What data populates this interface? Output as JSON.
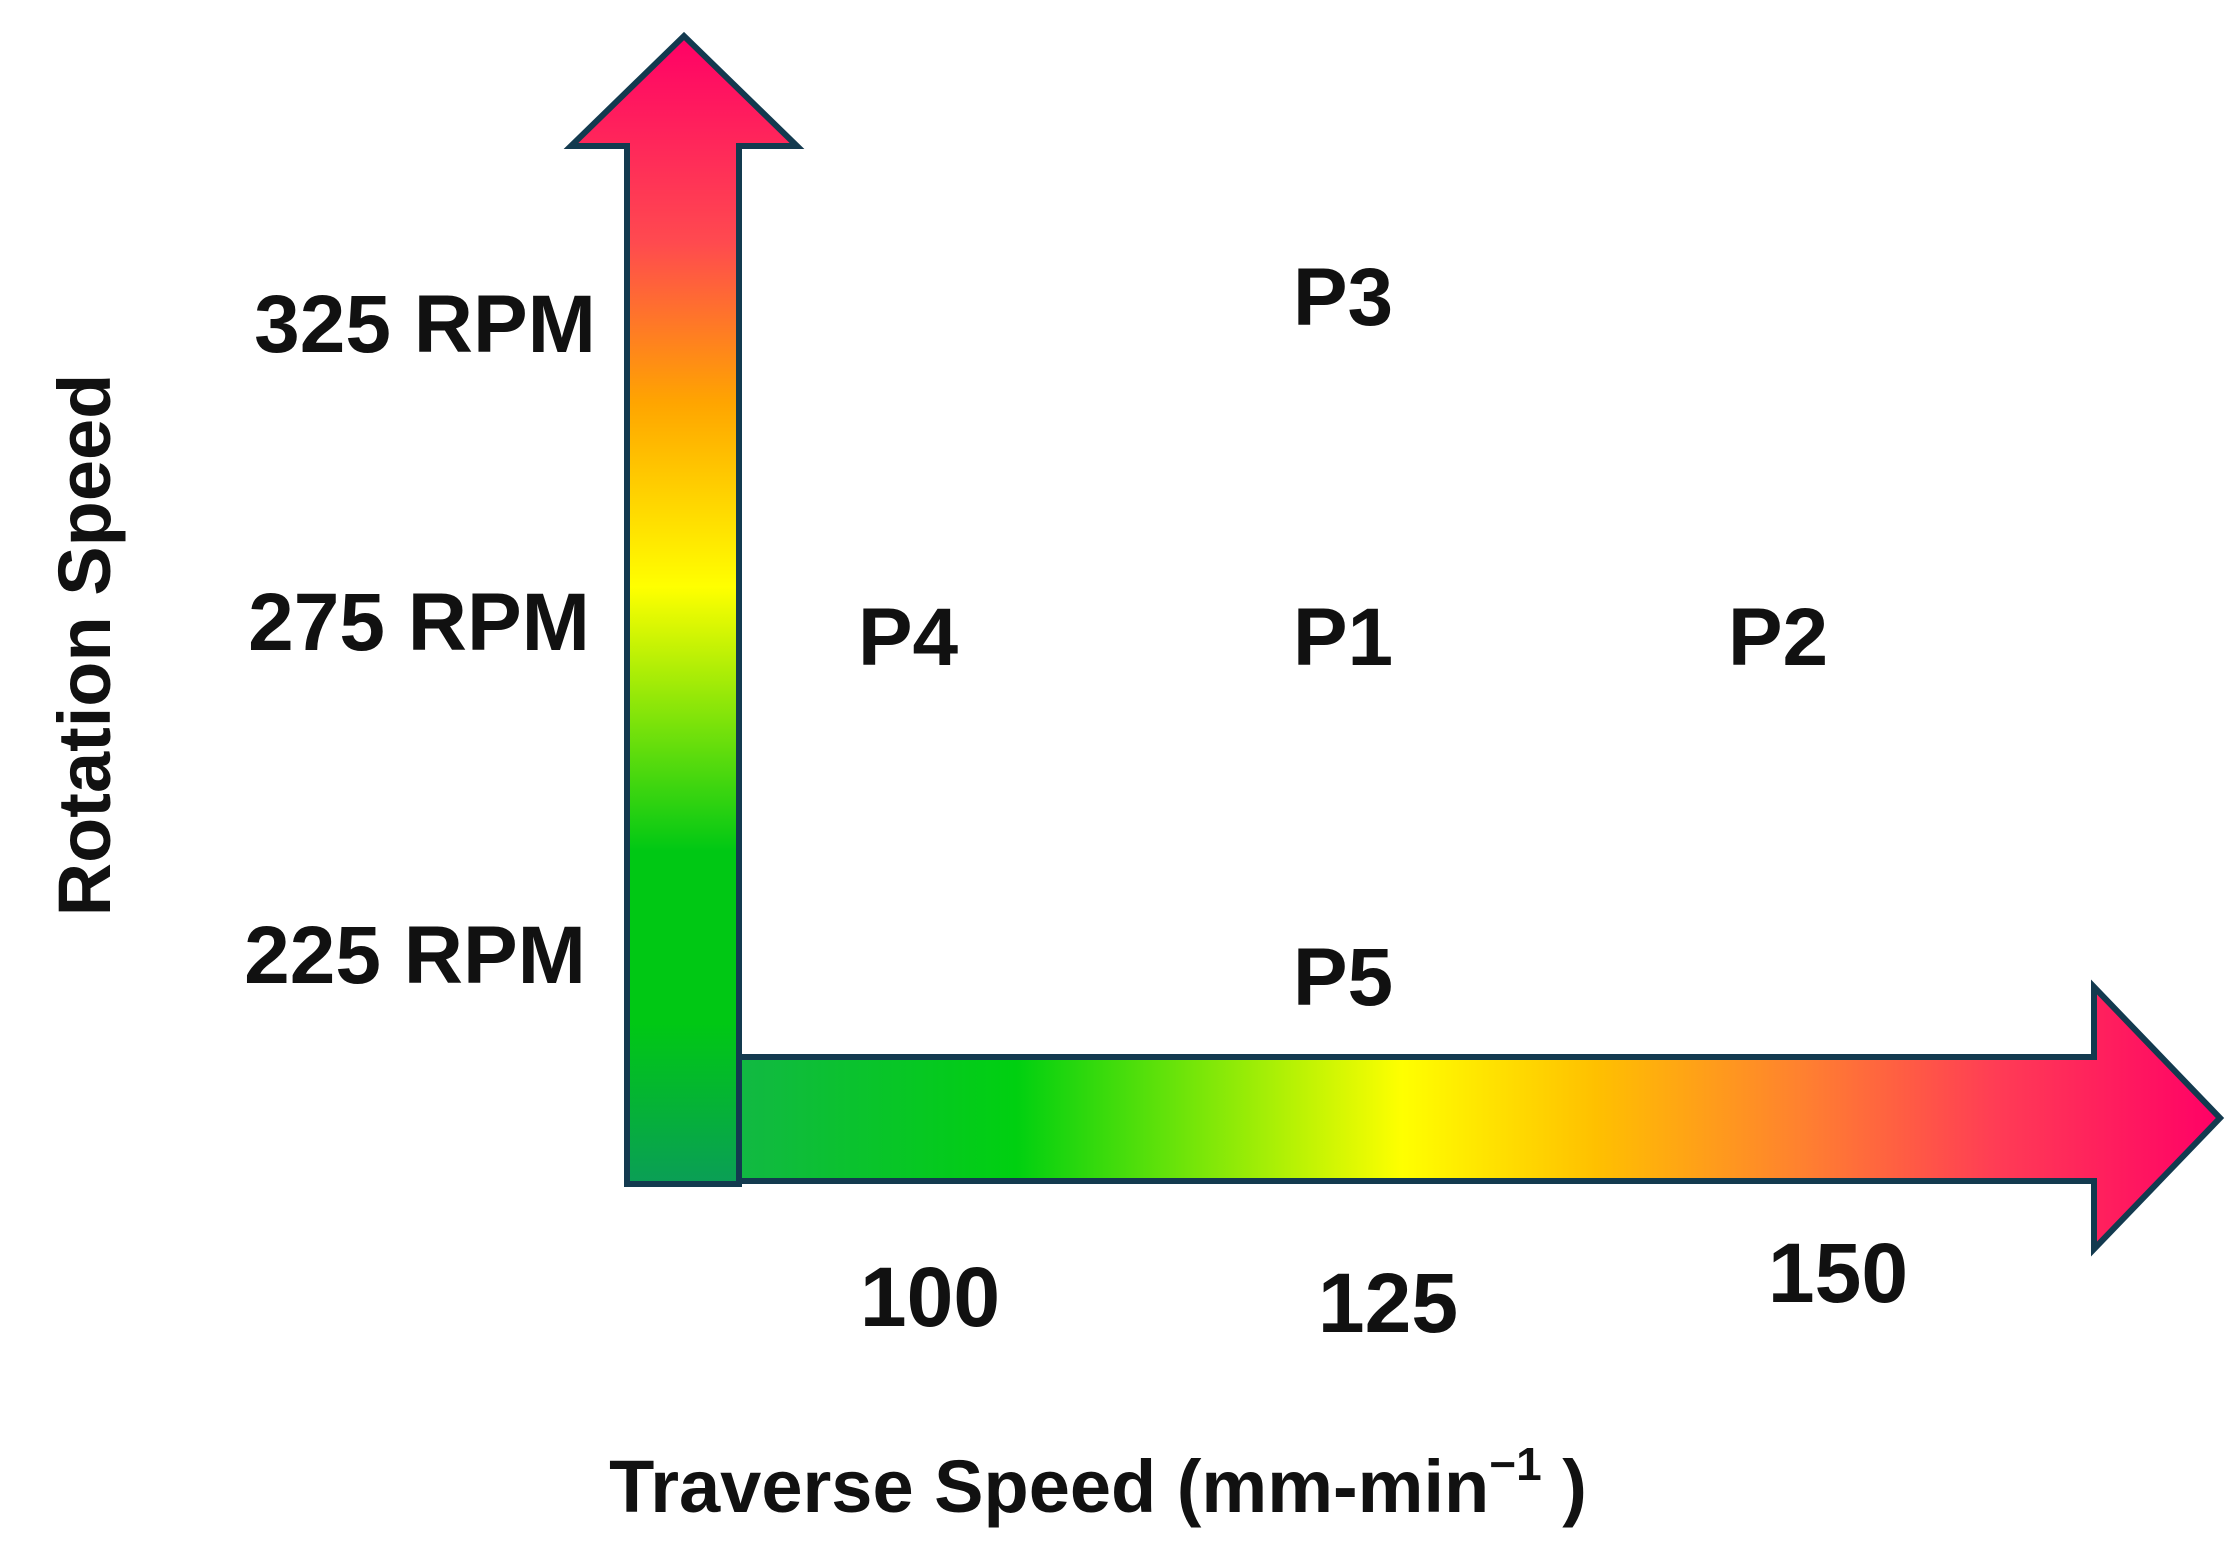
{
  "chart_data": {
    "type": "scatter",
    "title": "",
    "xlabel": "Traverse Speed (mm-min",
    "xlabel_superscript": "−1",
    "xlabel_suffix": " )",
    "ylabel": "Rotation Speed",
    "x_ticks": [
      "100",
      "125",
      "150"
    ],
    "y_ticks": [
      "225 RPM",
      "275 RPM",
      "325 RPM"
    ],
    "points": [
      {
        "label": "P1",
        "x": 125,
        "y": 275
      },
      {
        "label": "P2",
        "x": 150,
        "y": 275
      },
      {
        "label": "P3",
        "x": 125,
        "y": 325
      },
      {
        "label": "P4",
        "x": 100,
        "y": 275
      },
      {
        "label": "P5",
        "x": 125,
        "y": 225
      }
    ],
    "xlim": [
      100,
      150
    ],
    "ylim": [
      225,
      325
    ],
    "colors": {
      "low": "#00c814",
      "mid": "#ffff00",
      "orange": "#ffa500",
      "high": "#ff0066",
      "base": "#0a9e56",
      "outline": "#133a4f"
    }
  }
}
